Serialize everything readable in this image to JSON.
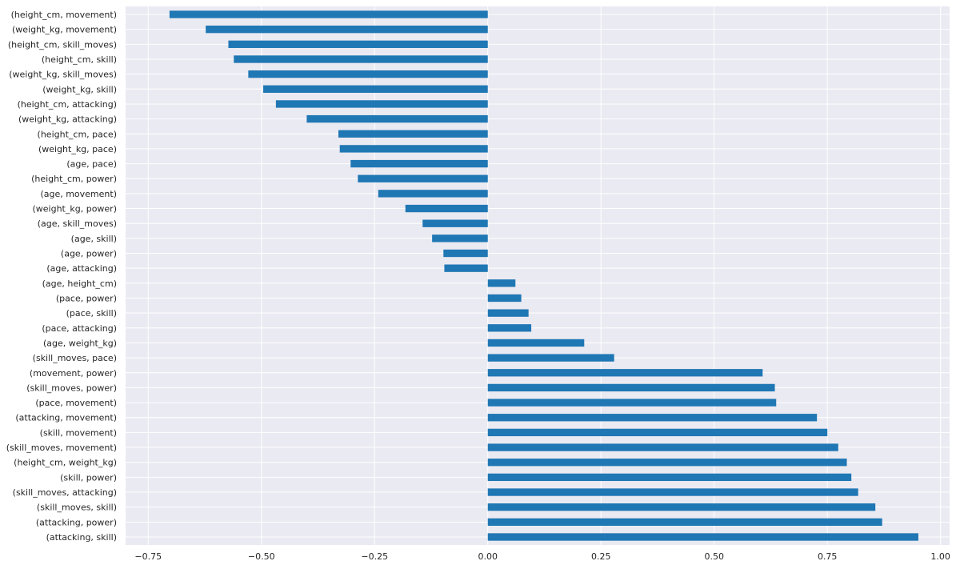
{
  "chart_data": {
    "type": "bar",
    "orientation": "horizontal",
    "title": "",
    "xlabel": "",
    "ylabel": "",
    "xlim": [
      -0.8,
      1.02
    ],
    "x_ticks": [
      -0.75,
      -0.5,
      -0.25,
      0.0,
      0.25,
      0.5,
      0.75,
      1.0
    ],
    "x_tick_labels": [
      "−0.75",
      "−0.50",
      "−0.25",
      "0.00",
      "0.25",
      "0.50",
      "0.75",
      "1.00"
    ],
    "grid": true,
    "bar_color": "#1f77b4",
    "background_color": "#eaeaf2",
    "categories": [
      "(height_cm, movement)",
      "(weight_kg, movement)",
      "(height_cm, skill_moves)",
      "(height_cm, skill)",
      "(weight_kg, skill_moves)",
      "(weight_kg, skill)",
      "(height_cm, attacking)",
      "(weight_kg, attacking)",
      "(height_cm, pace)",
      "(weight_kg, pace)",
      "(age, pace)",
      "(height_cm, power)",
      "(age, movement)",
      "(weight_kg, power)",
      "(age, skill_moves)",
      "(age, skill)",
      "(age, power)",
      "(age, attacking)",
      "(age, height_cm)",
      "(pace, power)",
      "(pace, skill)",
      "(pace, attacking)",
      "(age, weight_kg)",
      "(skill_moves, pace)",
      "(movement, power)",
      "(skill_moves, power)",
      "(pace, movement)",
      "(attacking, movement)",
      "(skill, movement)",
      "(skill_moves, movement)",
      "(height_cm, weight_kg)",
      "(skill, power)",
      "(skill_moves, attacking)",
      "(skill_moves, skill)",
      "(attacking, power)",
      "(attacking, skill)"
    ],
    "values": [
      -0.703,
      -0.623,
      -0.573,
      -0.561,
      -0.529,
      -0.496,
      -0.468,
      -0.4,
      -0.33,
      -0.327,
      -0.303,
      -0.287,
      -0.242,
      -0.182,
      -0.144,
      -0.123,
      -0.098,
      -0.096,
      0.061,
      0.074,
      0.09,
      0.096,
      0.213,
      0.279,
      0.607,
      0.634,
      0.637,
      0.727,
      0.75,
      0.774,
      0.793,
      0.803,
      0.818,
      0.856,
      0.871,
      0.951
    ]
  }
}
